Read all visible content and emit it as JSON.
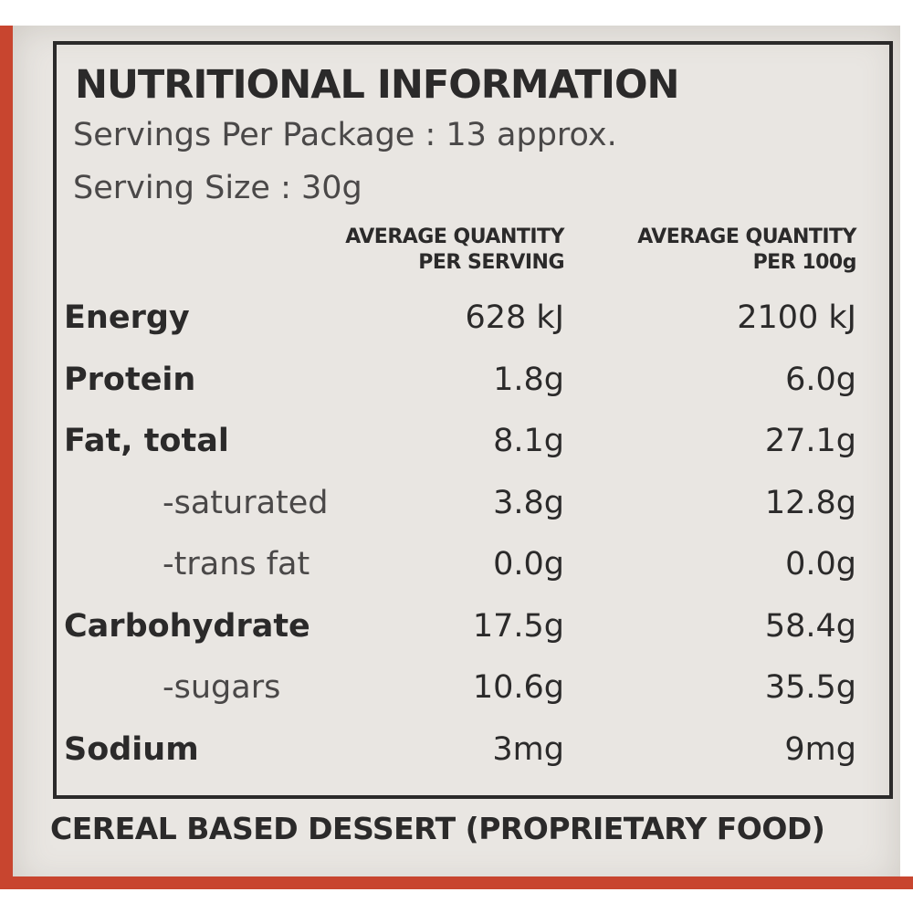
{
  "header": {
    "title": "NUTRITIONAL INFORMATION",
    "servings": "Servings Per Package : 13 approx.",
    "serving_size": "Serving Size : 30g"
  },
  "table": {
    "columns": [
      [
        "AVERAGE QUANTITY",
        "PER SERVING"
      ],
      [
        "AVERAGE QUANTITY",
        "PER 100g"
      ]
    ],
    "rows": [
      [
        "Energy",
        "628 kJ",
        "2100 kJ"
      ],
      [
        "Protein",
        "1.8g",
        "6.0g"
      ],
      [
        "Fat, total",
        "8.1g",
        "27.1g"
      ],
      [
        "-saturated",
        "3.8g",
        "12.8g"
      ],
      [
        "-trans fat",
        "0.0g",
        "0.0g"
      ],
      [
        "Carbohydrate",
        "17.5g",
        "58.4g"
      ],
      [
        "-sugars",
        "10.6g",
        "35.5g"
      ],
      [
        "Sodium",
        "3mg",
        "9mg"
      ]
    ]
  },
  "footer": "CEREAL BASED DESSERT (PROPRIETARY FOOD)"
}
